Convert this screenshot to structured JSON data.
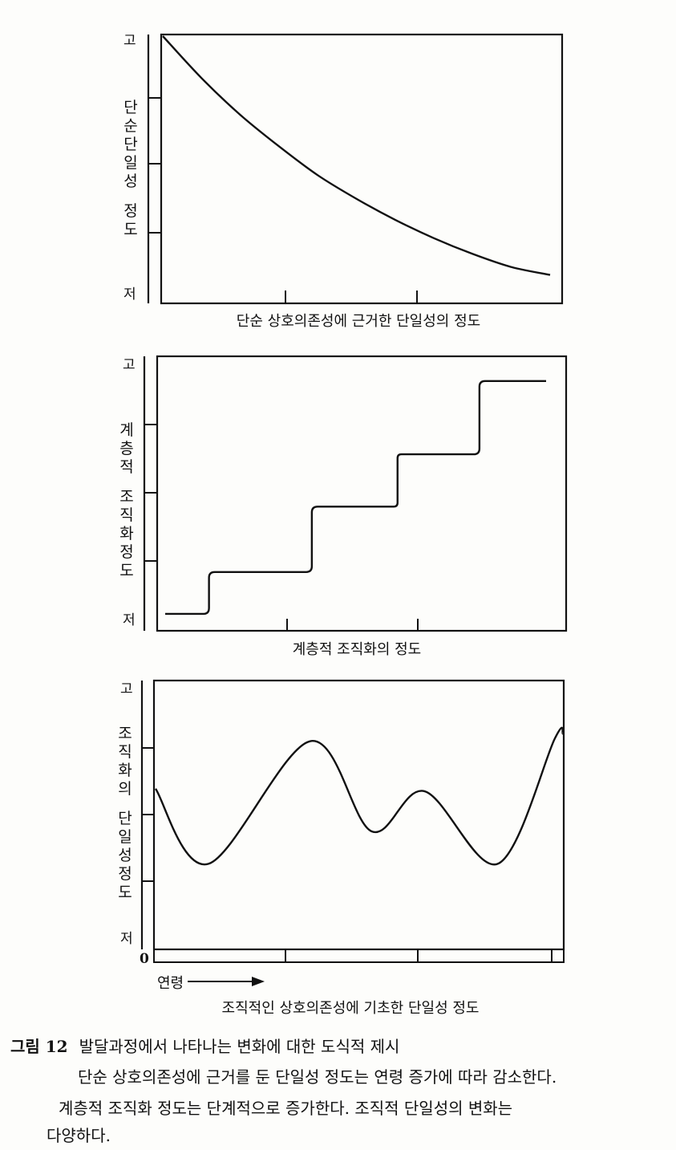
{
  "chart_data": [
    {
      "type": "line",
      "y_axis_label": "단순단일성 정도",
      "y_high": "고",
      "y_low": "저",
      "x_title": "단순 상호의존성에 근거한 단일성의 정도",
      "ylim": [
        0,
        1
      ],
      "xlim": [
        0,
        1
      ],
      "series": [
        {
          "x": [
            0.0,
            0.1,
            0.2,
            0.3,
            0.4,
            0.5,
            0.6,
            0.7,
            0.8,
            0.9,
            1.0
          ],
          "y": [
            1.0,
            0.84,
            0.7,
            0.58,
            0.47,
            0.38,
            0.3,
            0.23,
            0.17,
            0.12,
            0.09
          ]
        }
      ]
    },
    {
      "type": "line",
      "y_axis_label": "계층적 조직화정도",
      "y_high": "고",
      "y_low": "저",
      "x_title": "계층적 조직화의 정도",
      "ylim": [
        0,
        1
      ],
      "xlim": [
        0,
        1
      ],
      "series": [
        {
          "x": [
            0.0,
            0.1,
            0.13,
            0.37,
            0.4,
            0.6,
            0.62,
            0.81,
            0.84,
            1.0
          ],
          "y": [
            0.04,
            0.04,
            0.2,
            0.2,
            0.45,
            0.45,
            0.65,
            0.65,
            0.93,
            0.93
          ]
        }
      ]
    },
    {
      "type": "line",
      "y_axis_label": "조직화의 단일성정도",
      "y_high": "고",
      "y_low": "저",
      "x_origin": "0",
      "x_arrow_label": "연령",
      "x_title": "조직적인 상호의존성에 기초한 단일성 정도",
      "ylim": [
        0,
        1
      ],
      "xlim": [
        0,
        1
      ],
      "series": [
        {
          "x": [
            0.0,
            0.13,
            0.38,
            0.53,
            0.66,
            0.84,
            0.98,
            1.0
          ],
          "y": [
            0.6,
            0.3,
            0.79,
            0.43,
            0.59,
            0.3,
            0.8,
            0.82
          ]
        }
      ]
    }
  ],
  "caption": {
    "label": "그림 12",
    "title": "발달과정에서 나타나는 변화에 대한 도식적 제시",
    "line1": "단순 상호의존성에 근거를 둔 단일성 정도는 연령 증가에 따라 감소한다.",
    "line2": "계층적 조직화 정도는 단계적으로 증가한다. 조직적 단일성의 변화는",
    "line3": "다양하다."
  }
}
